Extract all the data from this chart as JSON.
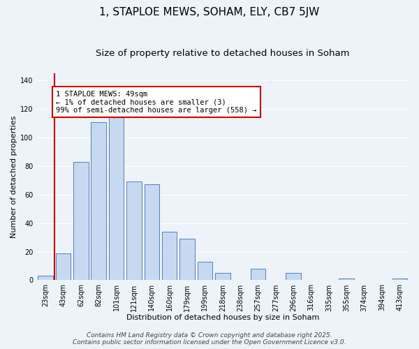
{
  "title": "1, STAPLOE MEWS, SOHAM, ELY, CB7 5JW",
  "subtitle": "Size of property relative to detached houses in Soham",
  "xlabel": "Distribution of detached houses by size in Soham",
  "ylabel": "Number of detached properties",
  "bar_labels": [
    "23sqm",
    "43sqm",
    "62sqm",
    "82sqm",
    "101sqm",
    "121sqm",
    "140sqm",
    "160sqm",
    "179sqm",
    "199sqm",
    "218sqm",
    "238sqm",
    "257sqm",
    "277sqm",
    "296sqm",
    "316sqm",
    "335sqm",
    "355sqm",
    "374sqm",
    "394sqm",
    "413sqm"
  ],
  "bar_values": [
    3,
    19,
    83,
    111,
    115,
    69,
    67,
    34,
    29,
    13,
    5,
    0,
    8,
    0,
    5,
    0,
    0,
    1,
    0,
    0,
    1
  ],
  "bar_color": "#c6d9f1",
  "bar_edge_color": "#4f81bd",
  "ylim": [
    0,
    145
  ],
  "yticks": [
    0,
    20,
    40,
    60,
    80,
    100,
    120,
    140
  ],
  "vline_color": "#cc0000",
  "annotation_title": "1 STAPLOE MEWS: 49sqm",
  "annotation_line1": "← 1% of detached houses are smaller (3)",
  "annotation_line2": "99% of semi-detached houses are larger (558) →",
  "annotation_box_color": "#cc0000",
  "footer1": "Contains HM Land Registry data © Crown copyright and database right 2025.",
  "footer2": "Contains public sector information licensed under the Open Government Licence v3.0.",
  "background_color": "#eef2f9",
  "grid_color": "#ffffff",
  "title_fontsize": 11,
  "subtitle_fontsize": 9.5,
  "axis_label_fontsize": 8,
  "tick_fontsize": 7,
  "annotation_fontsize": 7.5,
  "footer_fontsize": 6.5
}
